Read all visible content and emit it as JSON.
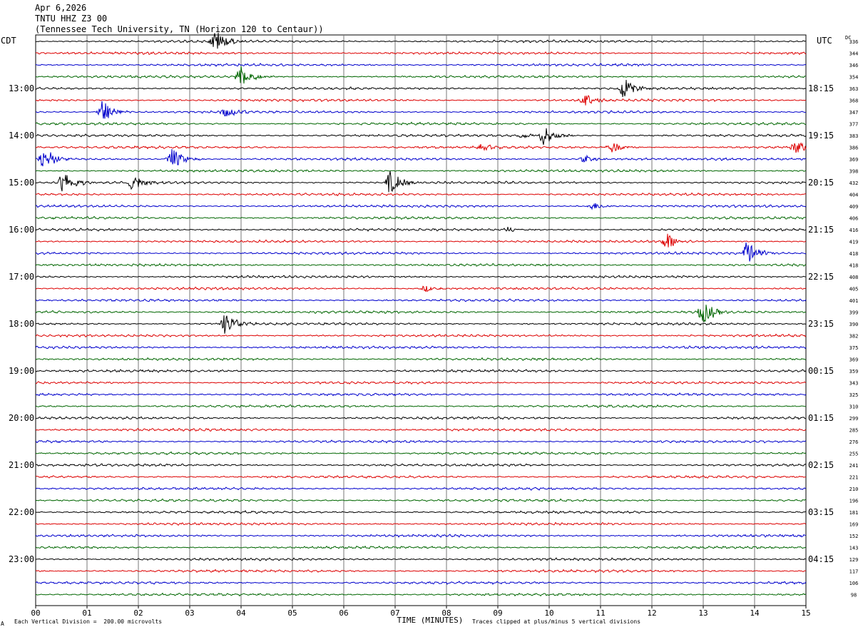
{
  "header": {
    "date": "Apr 6,2026",
    "station": "TNTU HHZ Z3 00",
    "location": "(Tennessee Tech University, TN (Horizon 120 to Centaur))"
  },
  "left_axis_label": "CDT",
  "right_axis_label": "UTC",
  "dc_label": "DC",
  "footer": {
    "scale": "Each Vertical Division =  200.00 microvolts",
    "clip": "Traces clipped at plus/minus 5 vertical divisions",
    "corner_mark": "A"
  },
  "chart_data": {
    "type": "line",
    "title": "",
    "xlabel": "TIME (MINUTES)",
    "ylabel": "",
    "xlim": [
      0,
      15
    ],
    "x_ticks": [
      "00",
      "01",
      "02",
      "03",
      "04",
      "05",
      "06",
      "07",
      "08",
      "09",
      "10",
      "11",
      "12",
      "13",
      "14",
      "15"
    ],
    "grid": true,
    "trace_count": 48,
    "trace_colors": [
      "#000000",
      "#dd0000",
      "#0000cc",
      "#006600"
    ],
    "left_time_labels": [
      {
        "row": 4,
        "label": "13:00"
      },
      {
        "row": 8,
        "label": "14:00"
      },
      {
        "row": 12,
        "label": "15:00"
      },
      {
        "row": 16,
        "label": "16:00"
      },
      {
        "row": 20,
        "label": "17:00"
      },
      {
        "row": 24,
        "label": "18:00"
      },
      {
        "row": 28,
        "label": "19:00"
      },
      {
        "row": 32,
        "label": "20:00"
      },
      {
        "row": 36,
        "label": "21:00"
      },
      {
        "row": 40,
        "label": "22:00"
      },
      {
        "row": 44,
        "label": "23:00"
      }
    ],
    "right_time_labels": [
      {
        "row": 4,
        "label": "18:15"
      },
      {
        "row": 8,
        "label": "19:15"
      },
      {
        "row": 12,
        "label": "20:15"
      },
      {
        "row": 16,
        "label": "21:15"
      },
      {
        "row": 20,
        "label": "22:15"
      },
      {
        "row": 24,
        "label": "23:15"
      },
      {
        "row": 28,
        "label": "00:15"
      },
      {
        "row": 32,
        "label": "01:15"
      },
      {
        "row": 36,
        "label": "02:15"
      },
      {
        "row": 40,
        "label": "03:15"
      },
      {
        "row": 44,
        "label": "04:15"
      }
    ],
    "dc_values": [
      "336",
      "344",
      "346",
      "354",
      "363",
      "368",
      "347",
      "377",
      "383",
      "386",
      "369",
      "398",
      "432",
      "404",
      "409",
      "406",
      "416",
      "419",
      "418",
      "418",
      "408",
      "405",
      "401",
      "399",
      "390",
      "382",
      "375",
      "369",
      "359",
      "343",
      "325",
      "310",
      "299",
      "285",
      "276",
      "255",
      "241",
      "221",
      "210",
      "196",
      "181",
      "169",
      "152",
      "143",
      "129",
      "117",
      "106",
      "98"
    ],
    "events": [
      {
        "row": 0,
        "minute": 3.5,
        "amp": 3.0
      },
      {
        "row": 3,
        "minute": 4.0,
        "amp": 3.0
      },
      {
        "row": 4,
        "minute": 11.45,
        "amp": 2.8
      },
      {
        "row": 5,
        "minute": 10.7,
        "amp": 2.0
      },
      {
        "row": 6,
        "minute": 1.3,
        "amp": 3.0
      },
      {
        "row": 6,
        "minute": 3.7,
        "amp": 1.4
      },
      {
        "row": 8,
        "minute": 9.9,
        "amp": 2.5
      },
      {
        "row": 8,
        "minute": 9.45,
        "amp": 0.8
      },
      {
        "row": 9,
        "minute": 11.2,
        "amp": 1.6
      },
      {
        "row": 9,
        "minute": 14.8,
        "amp": 1.8
      },
      {
        "row": 9,
        "minute": 8.7,
        "amp": 0.8
      },
      {
        "row": 10,
        "minute": 0.15,
        "amp": 3.0
      },
      {
        "row": 10,
        "minute": 2.65,
        "amp": 3.0
      },
      {
        "row": 10,
        "minute": 10.7,
        "amp": 0.9
      },
      {
        "row": 12,
        "minute": 0.55,
        "amp": 3.0
      },
      {
        "row": 12,
        "minute": 1.9,
        "amp": 2.0
      },
      {
        "row": 12,
        "minute": 6.9,
        "amp": 3.0
      },
      {
        "row": 14,
        "minute": 10.85,
        "amp": 1.0
      },
      {
        "row": 16,
        "minute": 9.2,
        "amp": 0.7
      },
      {
        "row": 17,
        "minute": 12.3,
        "amp": 2.3
      },
      {
        "row": 18,
        "minute": 13.85,
        "amp": 3.0
      },
      {
        "row": 21,
        "minute": 7.6,
        "amp": 0.8
      },
      {
        "row": 23,
        "minute": 13.0,
        "amp": 3.0
      },
      {
        "row": 24,
        "minute": 3.7,
        "amp": 3.0
      }
    ]
  }
}
